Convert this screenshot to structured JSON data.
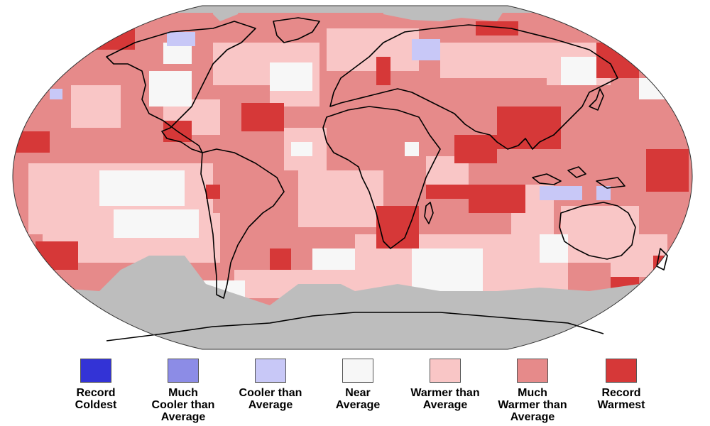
{
  "colors": {
    "record_coldest": "#3333d6",
    "much_cooler": "#8c8ce6",
    "cooler": "#c8c8f7",
    "near": "#f7f7f7",
    "warmer": "#f9c6c6",
    "much_warmer": "#e68a8a",
    "record_warmest": "#d63838",
    "no_data": "#bdbdbd",
    "coastline": "#000000"
  },
  "legend": [
    {
      "label": "Record\nColdest",
      "color": "#3333d6",
      "icon": "record-coldest-swatch"
    },
    {
      "label": "Much\nCooler than\nAverage",
      "color": "#8c8ce6",
      "icon": "much-cooler-swatch"
    },
    {
      "label": "Cooler than\nAverage",
      "color": "#c8c8f7",
      "icon": "cooler-swatch"
    },
    {
      "label": "Near\nAverage",
      "color": "#f7f7f7",
      "icon": "near-average-swatch"
    },
    {
      "label": "Warmer than\nAverage",
      "color": "#f9c6c6",
      "icon": "warmer-swatch"
    },
    {
      "label": "Much\nWarmer than\nAverage",
      "color": "#e68a8a",
      "icon": "much-warmer-swatch"
    },
    {
      "label": "Record\nWarmest",
      "color": "#d63838",
      "icon": "record-warmest-swatch"
    }
  ]
}
